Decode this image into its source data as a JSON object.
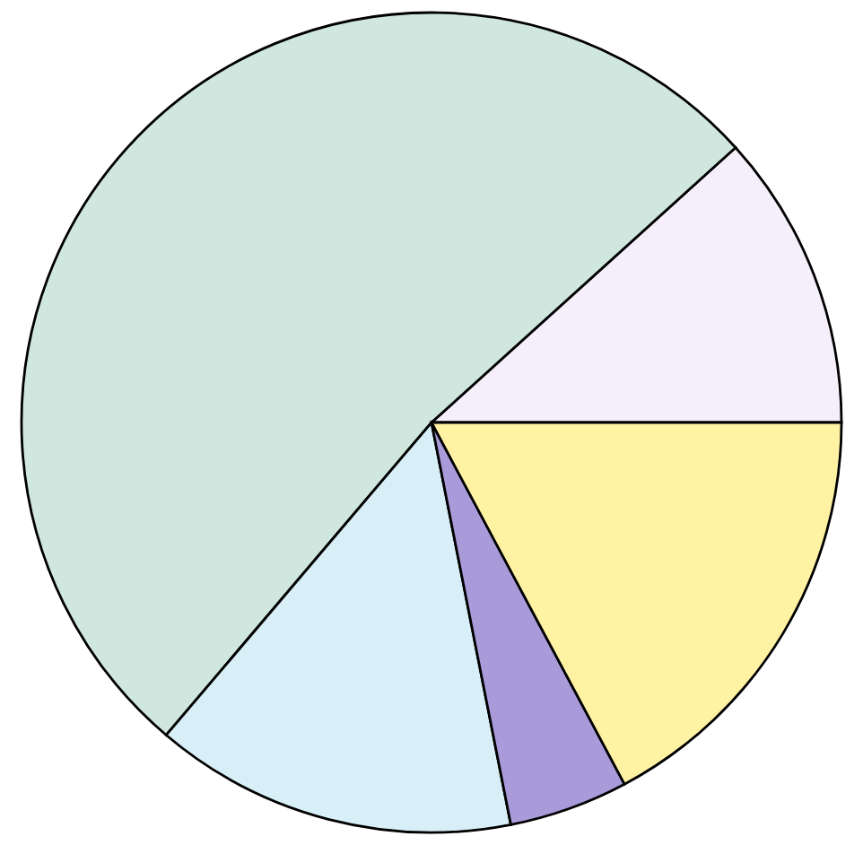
{
  "chart_data": {
    "type": "pie",
    "categories": [
      null,
      null,
      null,
      null,
      null
    ],
    "values": [
      11.7,
      52.1,
      14.3,
      4.7,
      17.2
    ],
    "colors": [
      "#f4effa",
      "#cfe7df",
      "#d8eff8",
      "#a99bd9",
      "#fff3a3"
    ]
  }
}
